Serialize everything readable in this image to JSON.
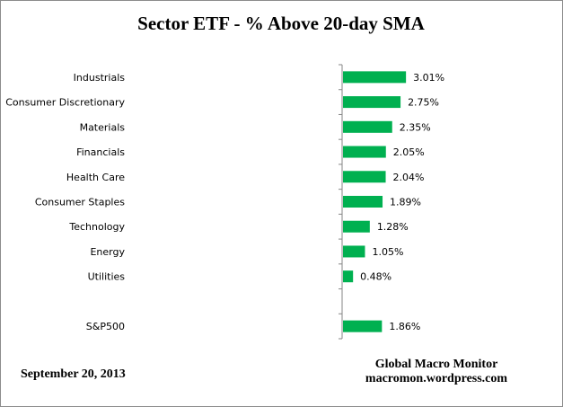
{
  "chart_data": {
    "type": "bar",
    "orientation": "horizontal",
    "title": "Sector ETF - % Above 20-day SMA",
    "categories": [
      "Industrials",
      "Consumer Discretionary",
      "Materials",
      "Financials",
      "Health Care",
      "Consumer Staples",
      "Technology",
      "Energy",
      "Utilities",
      "",
      "S&P500"
    ],
    "values": [
      3.01,
      2.75,
      2.35,
      2.05,
      2.04,
      1.89,
      1.28,
      1.05,
      0.48,
      null,
      1.86
    ],
    "data_labels": [
      "3.01%",
      "2.75%",
      "2.35%",
      "2.05%",
      "2.04%",
      "1.89%",
      "1.28%",
      "1.05%",
      "0.48%",
      "",
      "1.86%"
    ],
    "xlim": [
      0,
      10
    ],
    "bar_color": "#00B050",
    "grid": false,
    "legend": "none"
  },
  "footer": {
    "date": "September 20, 2013",
    "source_line1": "Global Macro Monitor",
    "source_line2": "macromon.wordpress.com"
  }
}
